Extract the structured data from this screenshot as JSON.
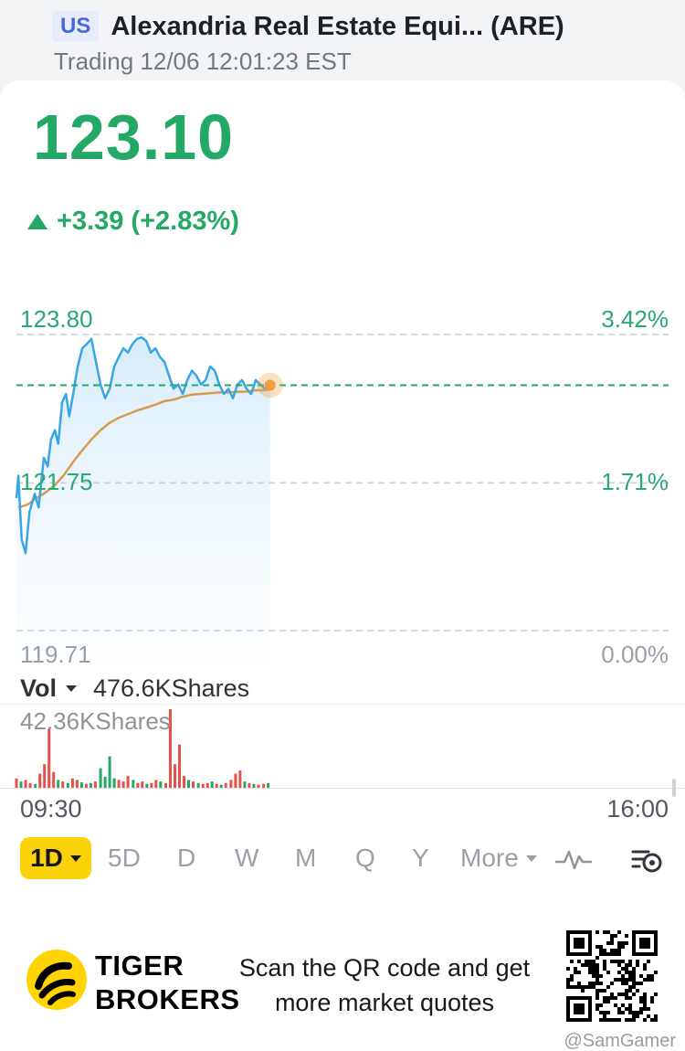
{
  "header": {
    "market_badge": "US",
    "title": "Alexandria Real Estate Equi... (ARE)",
    "status_line": "Trading 12/06 12:01:23 EST"
  },
  "quote": {
    "price": "123.10",
    "change_text": "+3.39 (+2.83%)",
    "direction": "up"
  },
  "chart": {
    "left_labels": [
      "123.80",
      "121.75",
      "119.71"
    ],
    "right_labels": [
      "3.42%",
      "1.71%",
      "0.00%"
    ]
  },
  "volume_header": {
    "label": "Vol",
    "value": "476.6KShares",
    "scale_label": "42.36KShares"
  },
  "time_axis": {
    "open": "09:30",
    "close": "16:00"
  },
  "periods": {
    "items": [
      {
        "label": "1D"
      },
      {
        "label": "5D"
      },
      {
        "label": "D"
      },
      {
        "label": "W"
      },
      {
        "label": "M"
      },
      {
        "label": "Q"
      },
      {
        "label": "Y"
      },
      {
        "label": "More"
      }
    ],
    "active": "1D"
  },
  "banner": {
    "brand_top": "TIGER",
    "brand_bottom": "BROKERS",
    "message": "Scan the QR code and get more market quotes"
  },
  "watermark": "@SamGamer",
  "chart_data": {
    "type": "line",
    "title": "ARE intraday price",
    "y_axis": {
      "high": 123.8,
      "mid": 121.75,
      "low": 119.71,
      "current": 123.1
    },
    "right_percent_labels": {
      "high": "3.42%",
      "mid": "1.71%",
      "low": "0.00%"
    },
    "session": {
      "open": "09:30",
      "close": "16:00",
      "progress": 0.389
    },
    "colors": {
      "price_line": "#38a5e5",
      "avg_line": "#d89a4f",
      "up": "#23a865",
      "down": "#e8504a",
      "fill_top": "rgba(130,195,238,0.32)",
      "fill_bottom": "rgba(205,233,250,0.05)"
    },
    "price_series": [
      [
        0.0,
        121.54
      ],
      [
        0.003,
        121.85
      ],
      [
        0.008,
        120.97
      ],
      [
        0.014,
        120.78
      ],
      [
        0.02,
        121.35
      ],
      [
        0.028,
        121.6
      ],
      [
        0.034,
        121.41
      ],
      [
        0.042,
        122.1
      ],
      [
        0.048,
        121.98
      ],
      [
        0.053,
        122.35
      ],
      [
        0.059,
        122.48
      ],
      [
        0.064,
        122.29
      ],
      [
        0.07,
        122.86
      ],
      [
        0.076,
        122.98
      ],
      [
        0.081,
        122.67
      ],
      [
        0.087,
        122.98
      ],
      [
        0.094,
        123.36
      ],
      [
        0.101,
        123.61
      ],
      [
        0.108,
        123.67
      ],
      [
        0.115,
        123.74
      ],
      [
        0.122,
        123.42
      ],
      [
        0.129,
        123.11
      ],
      [
        0.136,
        122.92
      ],
      [
        0.143,
        123.05
      ],
      [
        0.15,
        123.36
      ],
      [
        0.157,
        123.49
      ],
      [
        0.164,
        123.61
      ],
      [
        0.171,
        123.55
      ],
      [
        0.178,
        123.67
      ],
      [
        0.185,
        123.74
      ],
      [
        0.192,
        123.76
      ],
      [
        0.199,
        123.71
      ],
      [
        0.206,
        123.55
      ],
      [
        0.213,
        123.61
      ],
      [
        0.22,
        123.49
      ],
      [
        0.227,
        123.42
      ],
      [
        0.234,
        123.23
      ],
      [
        0.241,
        123.05
      ],
      [
        0.248,
        123.11
      ],
      [
        0.255,
        122.98
      ],
      [
        0.262,
        123.17
      ],
      [
        0.269,
        123.3
      ],
      [
        0.276,
        123.23
      ],
      [
        0.283,
        123.11
      ],
      [
        0.29,
        123.17
      ],
      [
        0.297,
        123.36
      ],
      [
        0.304,
        123.3
      ],
      [
        0.311,
        123.11
      ],
      [
        0.318,
        122.98
      ],
      [
        0.325,
        123.05
      ],
      [
        0.332,
        122.92
      ],
      [
        0.339,
        123.11
      ],
      [
        0.346,
        123.17
      ],
      [
        0.353,
        123.05
      ],
      [
        0.36,
        122.98
      ],
      [
        0.367,
        123.17
      ],
      [
        0.374,
        123.11
      ],
      [
        0.381,
        123.05
      ],
      [
        0.389,
        123.1
      ]
    ],
    "avg_series": [
      [
        0.003,
        121.41
      ],
      [
        0.017,
        121.45
      ],
      [
        0.031,
        121.54
      ],
      [
        0.045,
        121.62
      ],
      [
        0.059,
        121.72
      ],
      [
        0.073,
        121.86
      ],
      [
        0.087,
        122.04
      ],
      [
        0.101,
        122.2
      ],
      [
        0.115,
        122.35
      ],
      [
        0.129,
        122.48
      ],
      [
        0.143,
        122.58
      ],
      [
        0.157,
        122.65
      ],
      [
        0.171,
        122.7
      ],
      [
        0.185,
        122.75
      ],
      [
        0.199,
        122.79
      ],
      [
        0.213,
        122.83
      ],
      [
        0.227,
        122.88
      ],
      [
        0.241,
        122.9
      ],
      [
        0.255,
        122.94
      ],
      [
        0.269,
        122.97
      ],
      [
        0.283,
        122.98
      ],
      [
        0.297,
        122.99
      ],
      [
        0.311,
        123.0
      ],
      [
        0.325,
        123.0
      ],
      [
        0.339,
        123.01
      ],
      [
        0.353,
        123.01
      ],
      [
        0.367,
        123.03
      ],
      [
        0.381,
        123.03
      ],
      [
        0.389,
        123.04
      ]
    ],
    "volume": {
      "display_total": "476.6KShares",
      "scale": "42.36KShares",
      "bars": [
        [
          0.0,
          0.12,
          "r"
        ],
        [
          0.007,
          0.08,
          "g"
        ],
        [
          0.014,
          0.1,
          "r"
        ],
        [
          0.021,
          0.06,
          "r"
        ],
        [
          0.029,
          0.05,
          "g"
        ],
        [
          0.036,
          0.18,
          "r"
        ],
        [
          0.043,
          0.3,
          "r"
        ],
        [
          0.05,
          0.75,
          "r"
        ],
        [
          0.057,
          0.2,
          "r"
        ],
        [
          0.064,
          0.1,
          "g"
        ],
        [
          0.071,
          0.08,
          "r"
        ],
        [
          0.079,
          0.06,
          "g"
        ],
        [
          0.086,
          0.12,
          "r"
        ],
        [
          0.093,
          0.1,
          "r"
        ],
        [
          0.1,
          0.07,
          "g"
        ],
        [
          0.107,
          0.05,
          "r"
        ],
        [
          0.114,
          0.06,
          "g"
        ],
        [
          0.121,
          0.08,
          "r"
        ],
        [
          0.129,
          0.25,
          "g"
        ],
        [
          0.136,
          0.14,
          "g"
        ],
        [
          0.143,
          0.4,
          "g"
        ],
        [
          0.15,
          0.12,
          "g"
        ],
        [
          0.157,
          0.1,
          "r"
        ],
        [
          0.164,
          0.08,
          "r"
        ],
        [
          0.171,
          0.15,
          "r"
        ],
        [
          0.179,
          0.1,
          "g"
        ],
        [
          0.186,
          0.06,
          "r"
        ],
        [
          0.193,
          0.08,
          "r"
        ],
        [
          0.2,
          0.05,
          "g"
        ],
        [
          0.207,
          0.06,
          "r"
        ],
        [
          0.214,
          0.1,
          "r"
        ],
        [
          0.221,
          0.08,
          "g"
        ],
        [
          0.229,
          0.06,
          "r"
        ],
        [
          0.236,
          1.0,
          "r"
        ],
        [
          0.243,
          0.3,
          "r"
        ],
        [
          0.25,
          0.55,
          "r"
        ],
        [
          0.257,
          0.15,
          "r"
        ],
        [
          0.264,
          0.1,
          "g"
        ],
        [
          0.271,
          0.08,
          "r"
        ],
        [
          0.279,
          0.06,
          "g"
        ],
        [
          0.286,
          0.05,
          "r"
        ],
        [
          0.293,
          0.06,
          "r"
        ],
        [
          0.3,
          0.08,
          "g"
        ],
        [
          0.307,
          0.05,
          "r"
        ],
        [
          0.314,
          0.04,
          "g"
        ],
        [
          0.321,
          0.06,
          "r"
        ],
        [
          0.329,
          0.1,
          "r"
        ],
        [
          0.336,
          0.18,
          "r"
        ],
        [
          0.343,
          0.22,
          "r"
        ],
        [
          0.35,
          0.08,
          "g"
        ],
        [
          0.357,
          0.06,
          "r"
        ],
        [
          0.364,
          0.05,
          "g"
        ],
        [
          0.371,
          0.04,
          "r"
        ],
        [
          0.379,
          0.05,
          "r"
        ],
        [
          0.386,
          0.06,
          "g"
        ]
      ]
    }
  }
}
